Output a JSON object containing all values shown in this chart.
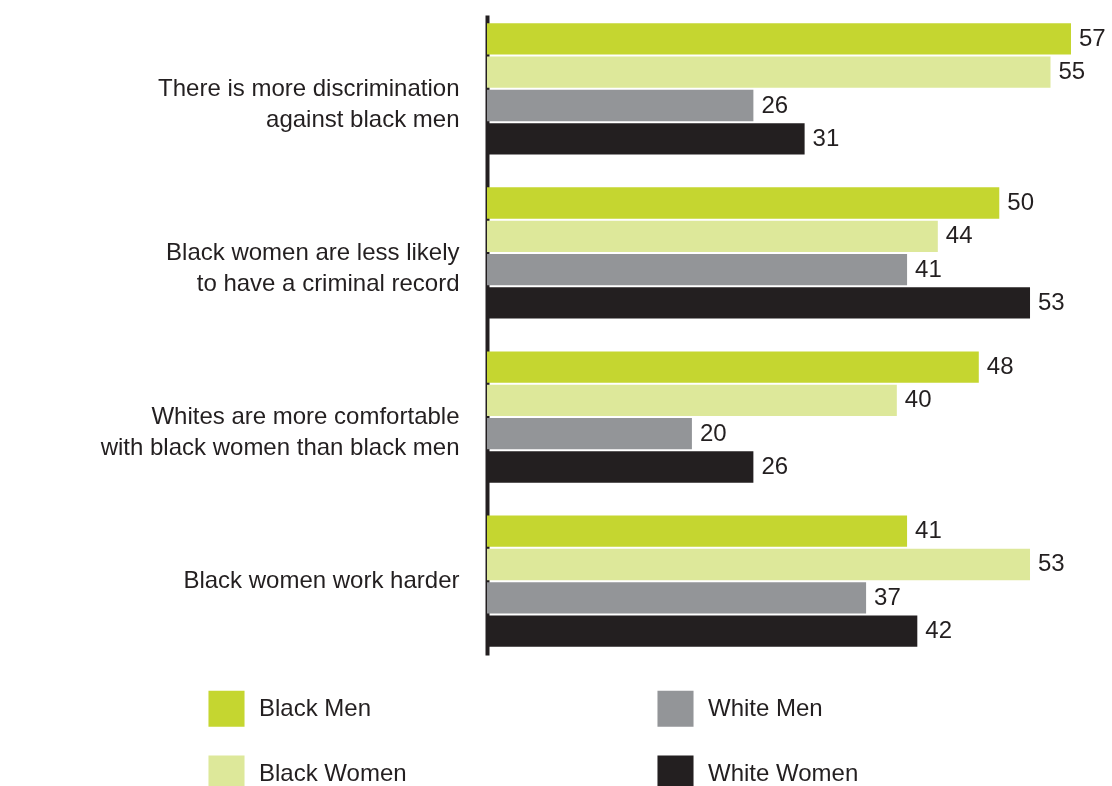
{
  "chart_data": {
    "type": "bar",
    "orientation": "horizontal",
    "data_labels": true,
    "legend": "bottom",
    "categories": [
      "There is more discrimination against black men",
      "Black women are less likely to have a criminal record",
      "Whites are more comfortable with black women than black men",
      "Black women work harder"
    ],
    "series": [
      {
        "name": "Black Men",
        "color": "#c5d630",
        "values": [
          57,
          50,
          48,
          41
        ]
      },
      {
        "name": "Black Women",
        "color": "#dde89a",
        "values": [
          55,
          44,
          40,
          53
        ]
      },
      {
        "name": "White Men",
        "color": "#939598",
        "values": [
          26,
          41,
          20,
          37
        ]
      },
      {
        "name": "White Women",
        "color": "#231f20",
        "values": [
          31,
          53,
          26,
          42
        ]
      }
    ]
  }
}
